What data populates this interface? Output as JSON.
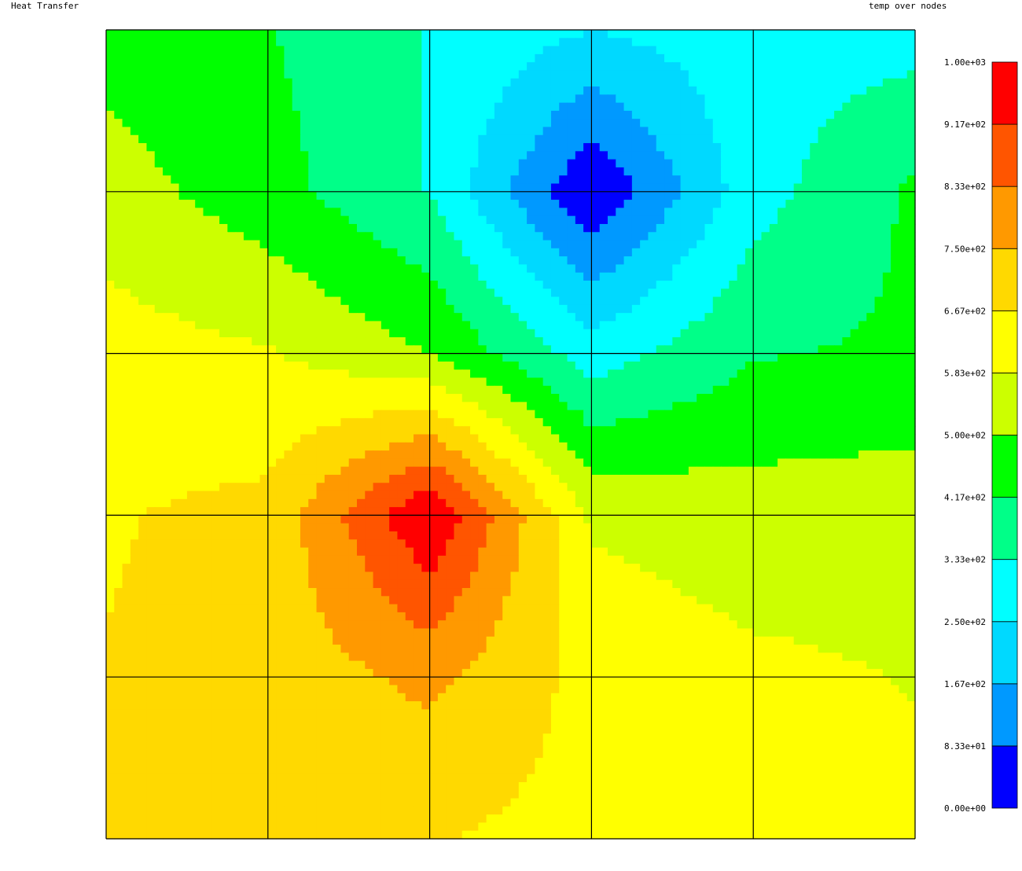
{
  "header": {
    "title": "Heat Transfer",
    "field_label": "temp over nodes"
  },
  "chart_data": {
    "type": "heatmap",
    "title": "Heat Transfer",
    "subtitle": "temp over nodes",
    "mesh": {
      "rows": 5,
      "cols": 5
    },
    "grid": true,
    "legend": "right",
    "levels": [
      0,
      83.3,
      166.7,
      250,
      333.3,
      416.7,
      500,
      583.3,
      666.7,
      750,
      833.3,
      916.7,
      1000
    ],
    "level_labels": [
      "0.00e+00",
      "8.33e+01",
      "1.67e+02",
      "2.50e+02",
      "3.33e+02",
      "4.17e+02",
      "5.00e+02",
      "5.83e+02",
      "6.67e+02",
      "7.50e+02",
      "8.33e+02",
      "9.17e+02",
      "1.00e+03"
    ],
    "colors": [
      "#0000ff",
      "#0099ff",
      "#00d9ff",
      "#00ffff",
      "#00ff88",
      "#00ff00",
      "#ccff00",
      "#ffff00",
      "#ffd900",
      "#ff9900",
      "#ff5500",
      "#ff0000"
    ],
    "node_temperatures": [
      [
        460,
        420,
        330,
        250,
        300,
        300
      ],
      [
        540,
        450,
        330,
        0,
        300,
        430
      ],
      [
        620,
        590,
        500,
        290,
        410,
        430
      ],
      [
        660,
        690,
        1000,
        570,
        540,
        550
      ],
      [
        670,
        700,
        770,
        640,
        600,
        580
      ],
      [
        690,
        690,
        670,
        640,
        610,
        600
      ]
    ]
  }
}
